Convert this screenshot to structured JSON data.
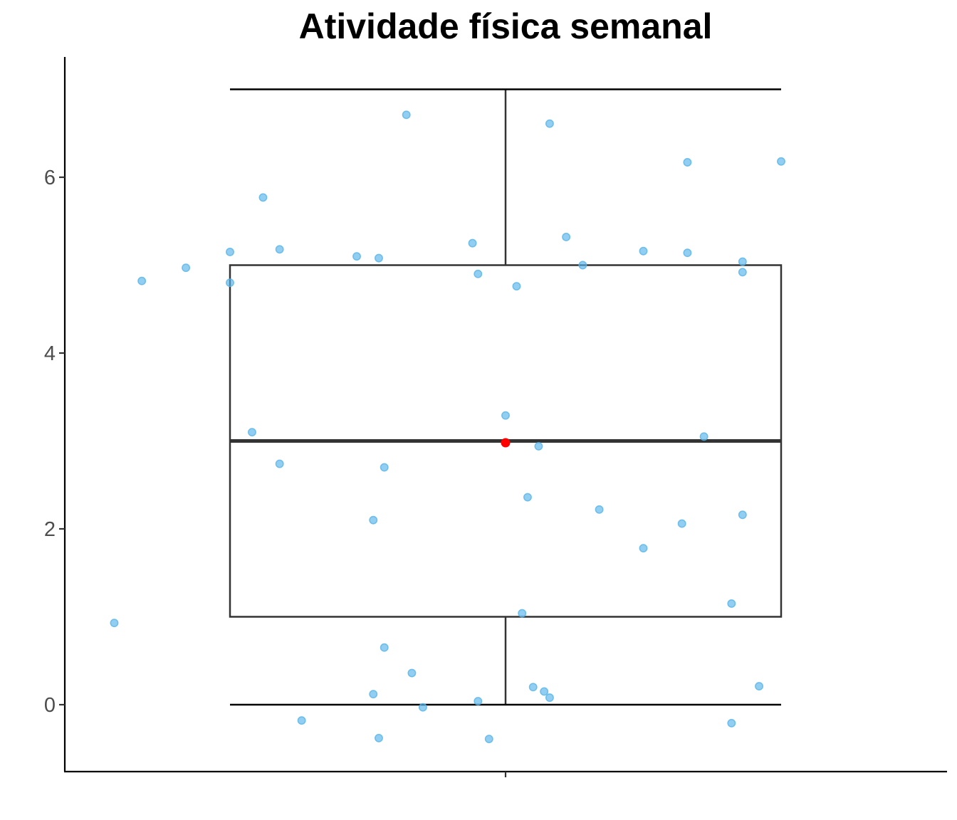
{
  "chart_data": {
    "type": "boxplot",
    "title": "Atividade física semanal",
    "xlabel": "",
    "ylabel": "",
    "ylim": [
      -0.75,
      7.3
    ],
    "yticks": [
      0,
      2,
      4,
      6
    ],
    "box": {
      "min": 0,
      "q1": 1,
      "median": 3,
      "q3": 5,
      "max": 7,
      "mean": 2.98
    },
    "jitter_points": [
      {
        "x": -0.71,
        "y": 0.93
      },
      {
        "x": -0.66,
        "y": 4.82
      },
      {
        "x": -0.58,
        "y": 4.97
      },
      {
        "x": -0.5,
        "y": 5.15
      },
      {
        "x": -0.5,
        "y": 4.8
      },
      {
        "x": -0.46,
        "y": 3.1
      },
      {
        "x": -0.44,
        "y": 5.77
      },
      {
        "x": -0.41,
        "y": 5.18
      },
      {
        "x": -0.41,
        "y": 2.74
      },
      {
        "x": -0.37,
        "y": -0.18
      },
      {
        "x": -0.27,
        "y": 5.1
      },
      {
        "x": -0.24,
        "y": 2.1
      },
      {
        "x": -0.24,
        "y": 0.12
      },
      {
        "x": -0.23,
        "y": 5.08
      },
      {
        "x": -0.23,
        "y": -0.38
      },
      {
        "x": -0.22,
        "y": 2.7
      },
      {
        "x": -0.22,
        "y": 0.65
      },
      {
        "x": -0.18,
        "y": 6.71
      },
      {
        "x": -0.17,
        "y": 0.36
      },
      {
        "x": -0.15,
        "y": -0.03
      },
      {
        "x": -0.06,
        "y": 5.25
      },
      {
        "x": -0.05,
        "y": 4.9
      },
      {
        "x": -0.05,
        "y": 0.04
      },
      {
        "x": -0.03,
        "y": -0.39
      },
      {
        "x": 0.0,
        "y": 3.29
      },
      {
        "x": 0.02,
        "y": 4.76
      },
      {
        "x": 0.03,
        "y": 1.04
      },
      {
        "x": 0.04,
        "y": 2.36
      },
      {
        "x": 0.05,
        "y": 0.2
      },
      {
        "x": 0.06,
        "y": 2.94
      },
      {
        "x": 0.07,
        "y": 0.15
      },
      {
        "x": 0.08,
        "y": 6.61
      },
      {
        "x": 0.08,
        "y": 0.08
      },
      {
        "x": 0.11,
        "y": 5.32
      },
      {
        "x": 0.14,
        "y": 5.0
      },
      {
        "x": 0.17,
        "y": 2.22
      },
      {
        "x": 0.25,
        "y": 5.16
      },
      {
        "x": 0.25,
        "y": 1.78
      },
      {
        "x": 0.32,
        "y": 2.06
      },
      {
        "x": 0.33,
        "y": 5.14
      },
      {
        "x": 0.33,
        "y": 6.17
      },
      {
        "x": 0.36,
        "y": 3.05
      },
      {
        "x": 0.41,
        "y": 1.15
      },
      {
        "x": 0.41,
        "y": -0.21
      },
      {
        "x": 0.43,
        "y": 5.04
      },
      {
        "x": 0.43,
        "y": 4.92
      },
      {
        "x": 0.43,
        "y": 2.16
      },
      {
        "x": 0.46,
        "y": 0.21
      },
      {
        "x": 0.5,
        "y": 6.18
      }
    ]
  },
  "colors": {
    "points": "#56B4E9",
    "mean": "#ff0000",
    "box_stroke": "#333333"
  }
}
